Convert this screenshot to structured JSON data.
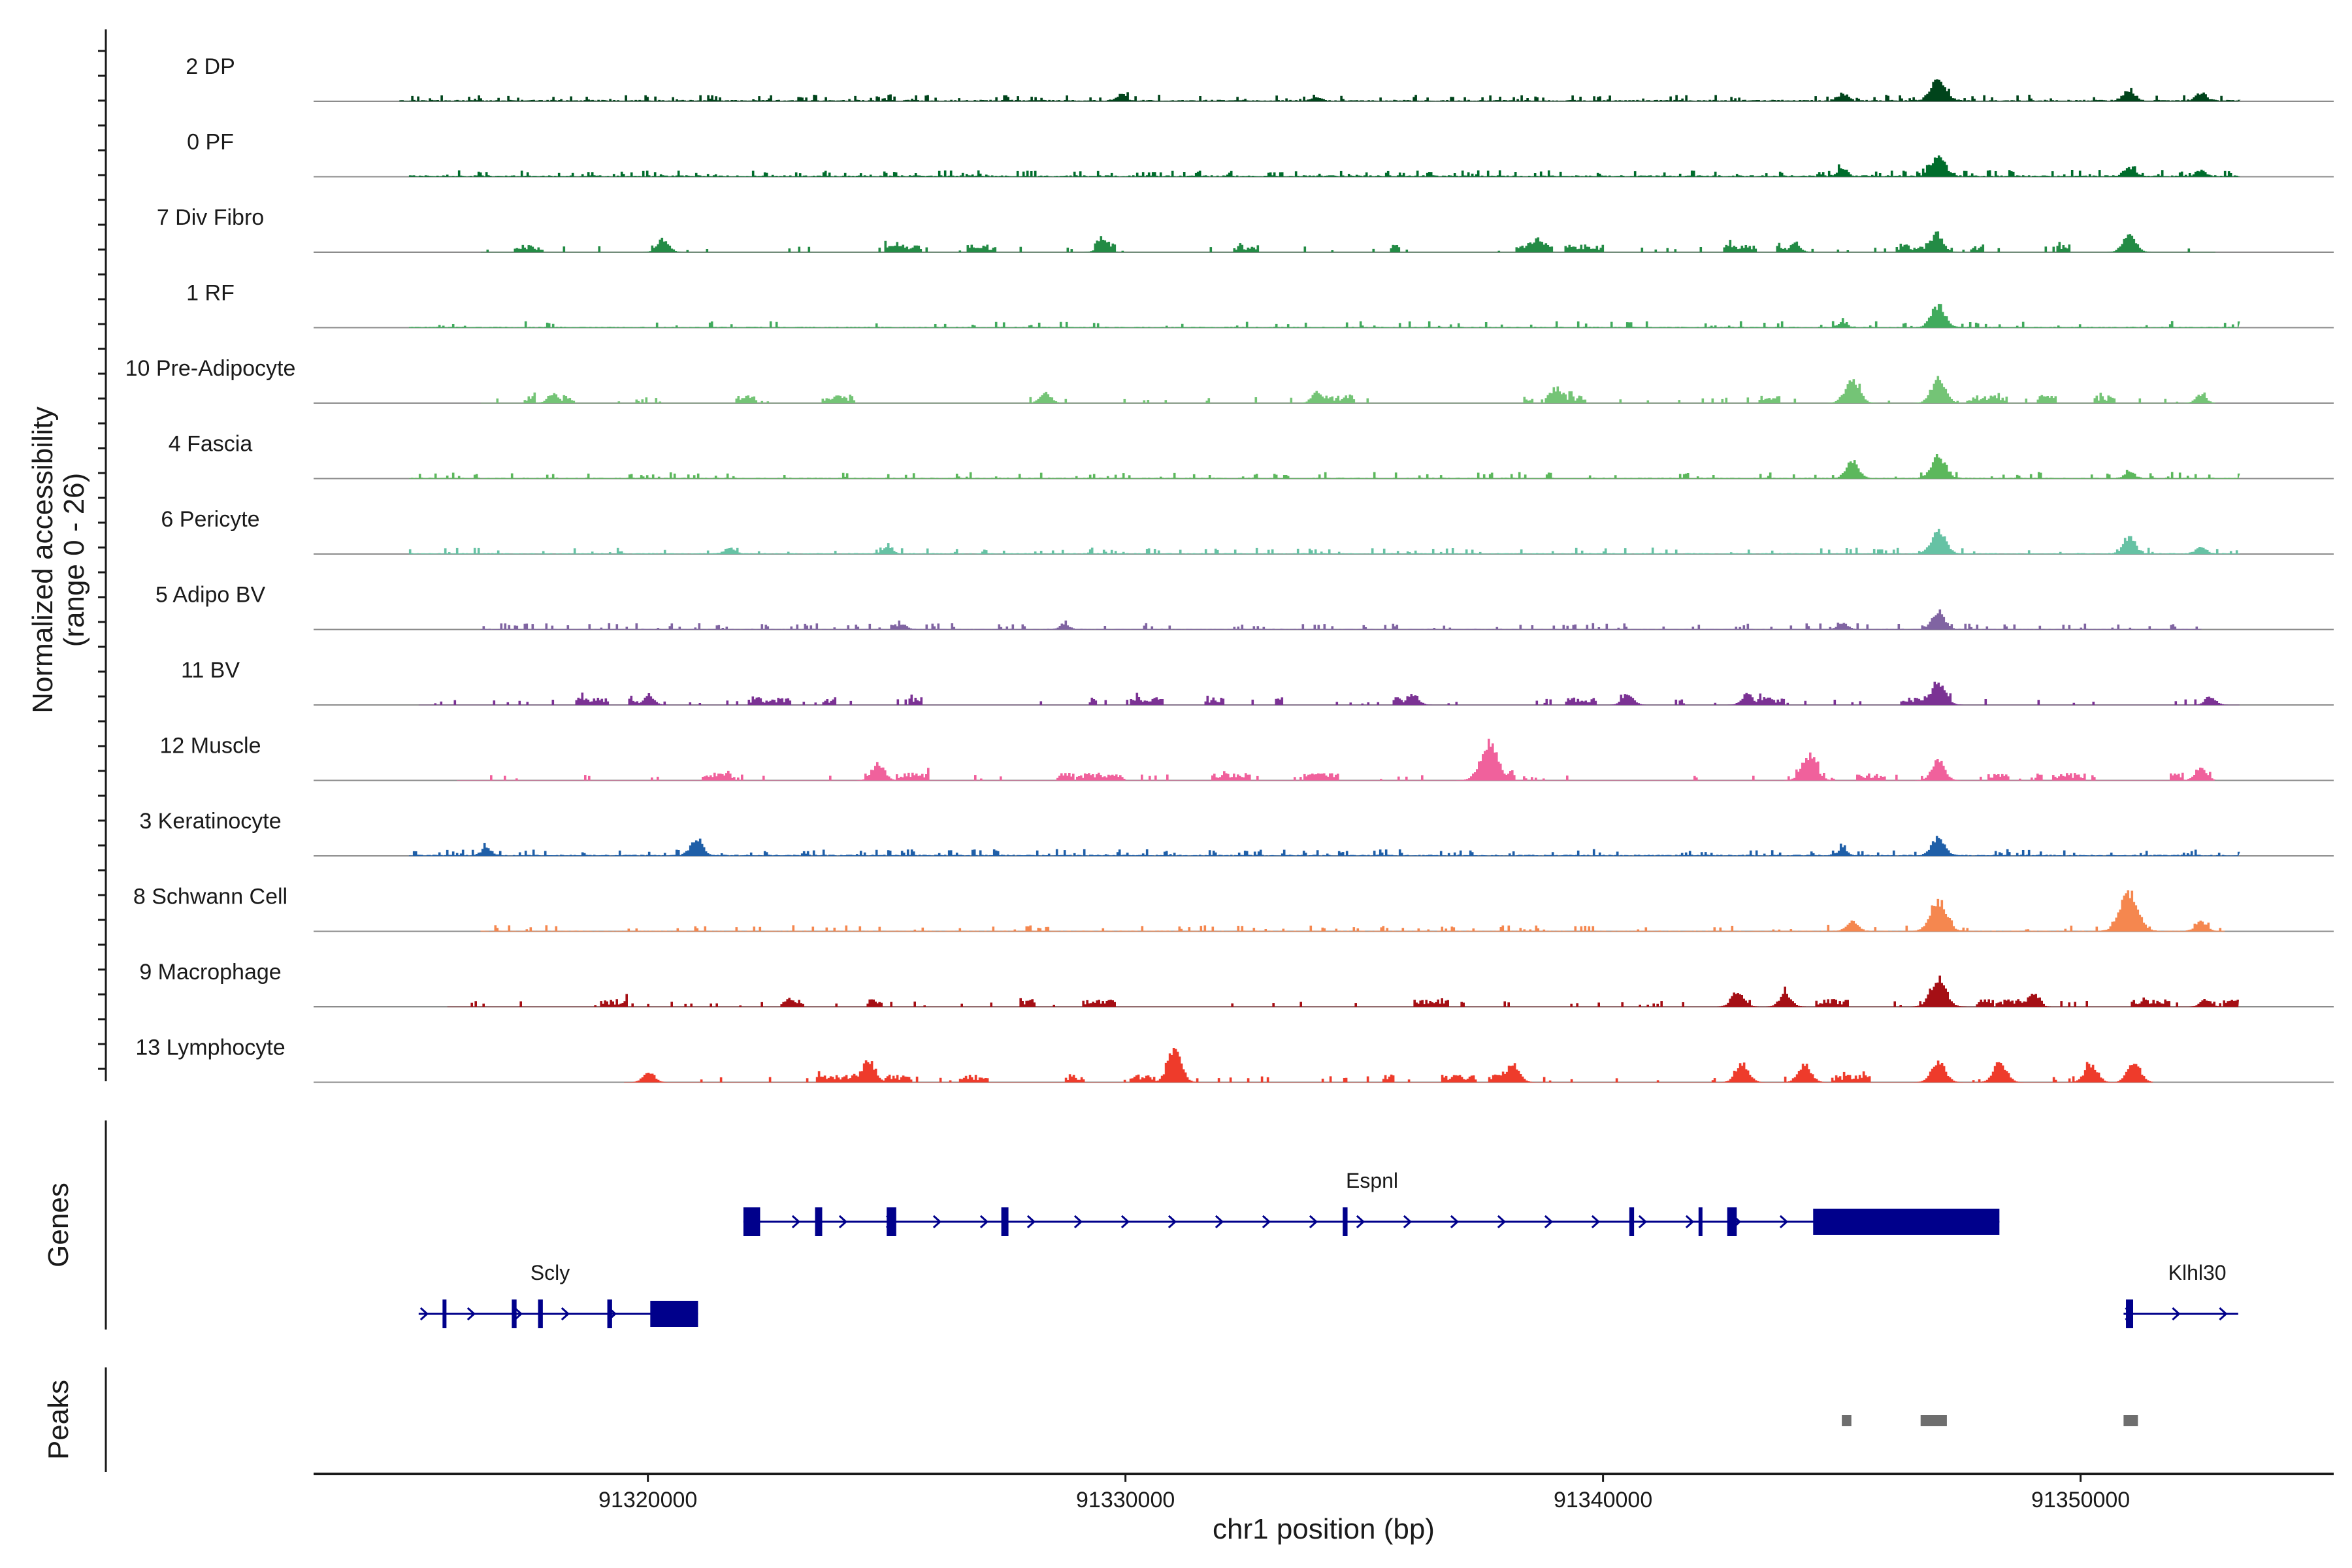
{
  "chart_data": {
    "type": "area",
    "title": "",
    "chromosome": "chr1",
    "xlabel": "chr1 position (bp)",
    "ylabel": "Normalized accessibility",
    "ylabel_range": "(range 0 - 26)",
    "xlim": [
      91313000,
      91355300
    ],
    "ylim": [
      0,
      26
    ],
    "x_ticks": [
      {
        "value": 91320000,
        "label": "91320000"
      },
      {
        "value": 91330000,
        "label": "91330000"
      },
      {
        "value": 91340000,
        "label": "91340000"
      },
      {
        "value": 91350000,
        "label": "91350000"
      }
    ],
    "tracks": [
      {
        "name": "2 DP",
        "color": "#00441b",
        "range": [
          91314800,
          91353300
        ],
        "density": 0.45,
        "baseline": 0.05,
        "peaks": [
          [
            91329900,
            0.25
          ],
          [
            91334000,
            0.15
          ],
          [
            91345000,
            0.3
          ],
          [
            91347000,
            1.0
          ],
          [
            91351000,
            0.45
          ],
          [
            91352500,
            0.35
          ]
        ]
      },
      {
        "name": "0 PF",
        "color": "#006d2c",
        "range": [
          91315000,
          91353300
        ],
        "density": 0.45,
        "baseline": 0.05,
        "peaks": [
          [
            91345000,
            0.3
          ],
          [
            91347000,
            0.9
          ],
          [
            91351000,
            0.35
          ],
          [
            91352500,
            0.25
          ]
        ]
      },
      {
        "name": "7 Div Fibro",
        "color": "#238b45",
        "range": [
          91316500,
          91352800
        ],
        "density": 0.2,
        "baseline": 0.0,
        "peaks": [
          [
            91320300,
            0.55
          ],
          [
            91329500,
            0.4
          ],
          [
            91338600,
            0.35
          ],
          [
            91344000,
            0.35
          ],
          [
            91347000,
            0.6
          ],
          [
            91351000,
            0.75
          ]
        ]
      },
      {
        "name": "1 RF",
        "color": "#41ab5d",
        "range": [
          91315000,
          91353300
        ],
        "density": 0.3,
        "baseline": 0.03,
        "peaks": [
          [
            91345000,
            0.18
          ],
          [
            91347000,
            0.9
          ]
        ]
      },
      {
        "name": "10 Pre-Adipocyte",
        "color": "#74c476",
        "range": [
          91316500,
          91352800
        ],
        "density": 0.18,
        "baseline": 0.0,
        "peaks": [
          [
            91318000,
            0.4
          ],
          [
            91328300,
            0.45
          ],
          [
            91334000,
            0.45
          ],
          [
            91339000,
            0.4
          ],
          [
            91345200,
            1.0
          ],
          [
            91347000,
            1.0
          ],
          [
            91352500,
            0.35
          ]
        ]
      },
      {
        "name": "4 Fascia",
        "color": "#5cb85c",
        "range": [
          91315000,
          91353300
        ],
        "density": 0.35,
        "baseline": 0.03,
        "peaks": [
          [
            91345200,
            0.7
          ],
          [
            91347000,
            0.95
          ],
          [
            91351000,
            0.25
          ]
        ]
      },
      {
        "name": "6 Pericyte",
        "color": "#66c2a4",
        "range": [
          91315000,
          91353300
        ],
        "density": 0.35,
        "baseline": 0.03,
        "peaks": [
          [
            91321700,
            0.25
          ],
          [
            91325000,
            0.25
          ],
          [
            91347000,
            1.0
          ],
          [
            91351000,
            0.65
          ],
          [
            91352500,
            0.3
          ]
        ]
      },
      {
        "name": "5 Adipo BV",
        "color": "#8064a2",
        "range": [
          91316500,
          91352500
        ],
        "density": 0.4,
        "baseline": 0.02,
        "peaks": [
          [
            91325300,
            0.2
          ],
          [
            91328700,
            0.2
          ],
          [
            91345000,
            0.25
          ],
          [
            91347000,
            0.75
          ]
        ]
      },
      {
        "name": "11 BV",
        "color": "#7b3294",
        "range": [
          91315200,
          91353300
        ],
        "density": 0.2,
        "baseline": 0.0,
        "peaks": [
          [
            91320000,
            0.4
          ],
          [
            91336000,
            0.45
          ],
          [
            91340500,
            0.45
          ],
          [
            91343000,
            0.45
          ],
          [
            91347000,
            1.0
          ],
          [
            91352700,
            0.35
          ]
        ]
      },
      {
        "name": "12 Muscle",
        "color": "#f0619c",
        "range": [
          91316000,
          91352800
        ],
        "density": 0.18,
        "baseline": 0.0,
        "peaks": [
          [
            91324800,
            0.7
          ],
          [
            91337600,
            1.6
          ],
          [
            91344300,
            1.05
          ],
          [
            91347000,
            0.8
          ],
          [
            91352500,
            0.55
          ]
        ]
      },
      {
        "name": "3 Keratinocyte",
        "color": "#1f5fa8",
        "range": [
          91315000,
          91353300
        ],
        "density": 0.45,
        "baseline": 0.04,
        "peaks": [
          [
            91316600,
            0.3
          ],
          [
            91321000,
            0.65
          ],
          [
            91345000,
            0.25
          ],
          [
            91347000,
            0.75
          ]
        ]
      },
      {
        "name": "8 Schwann Cell",
        "color": "#f5874f",
        "range": [
          91316500,
          91353000
        ],
        "density": 0.35,
        "baseline": 0.02,
        "peaks": [
          [
            91345200,
            0.45
          ],
          [
            91347000,
            1.3
          ],
          [
            91351000,
            1.6
          ],
          [
            91352500,
            0.4
          ]
        ]
      },
      {
        "name": "9 Macrophage",
        "color": "#a50f15",
        "range": [
          91315800,
          91353300
        ],
        "density": 0.2,
        "baseline": 0.0,
        "peaks": [
          [
            91342800,
            0.65
          ],
          [
            91343800,
            0.55
          ],
          [
            91347000,
            1.2
          ],
          [
            91349000,
            0.35
          ],
          [
            91352600,
            0.3
          ]
        ]
      },
      {
        "name": "13 Lymphocyte",
        "color": "#ee3b2b",
        "range": [
          91319500,
          91351500
        ],
        "density": 0.12,
        "baseline": 0.0,
        "peaks": [
          [
            91320000,
            0.45
          ],
          [
            91324600,
            0.9
          ],
          [
            91331000,
            1.05
          ],
          [
            91338100,
            0.75
          ],
          [
            91342900,
            0.75
          ],
          [
            91344200,
            0.75
          ],
          [
            91347000,
            0.9
          ],
          [
            91348300,
            0.8
          ],
          [
            91350200,
            0.75
          ],
          [
            91351100,
            0.8
          ]
        ]
      }
    ],
    "genes_panel_title": "Genes",
    "genes": [
      {
        "name": "Espnl",
        "row": 0,
        "strand": "+",
        "start": 91322000,
        "end": 91348300,
        "exons": [
          [
            91322000,
            91322350
          ],
          [
            91323500,
            91323650
          ],
          [
            91325000,
            91325200
          ],
          [
            91327400,
            91327550
          ],
          [
            91334550,
            91334650
          ],
          [
            91340550,
            91340650
          ],
          [
            91342000,
            91342080
          ],
          [
            91342600,
            91342800
          ],
          [
            91344400,
            91348300
          ]
        ]
      },
      {
        "name": "Scly",
        "row": 1,
        "strand": "+",
        "start": 91315200,
        "end": 91321050,
        "exons": [
          [
            91315700,
            91315750
          ],
          [
            91317150,
            91317250
          ],
          [
            91317700,
            91317800
          ],
          [
            91319150,
            91319250
          ],
          [
            91320050,
            91321050
          ]
        ]
      },
      {
        "name": "Klhl30",
        "row": 1,
        "strand": "+",
        "start": 91350900,
        "end": 91353300,
        "exons": [
          [
            91350950,
            91351100
          ]
        ]
      }
    ],
    "peaks_panel_title": "Peaks",
    "peak_regions": [
      [
        91345000,
        91345200
      ],
      [
        91346650,
        91347200
      ],
      [
        91350900,
        91351200
      ]
    ]
  }
}
